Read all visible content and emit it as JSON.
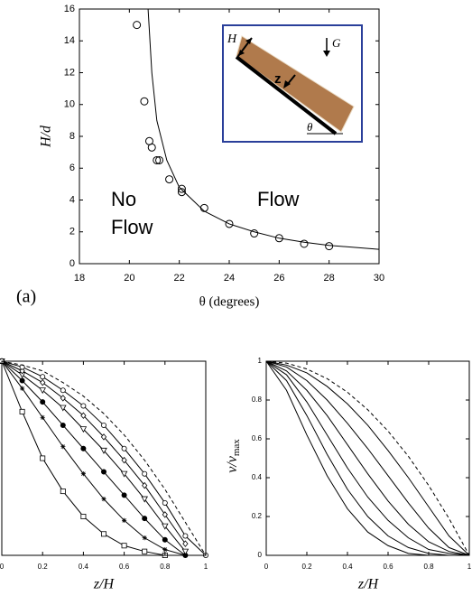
{
  "chart_data": [
    {
      "type": "scatter",
      "annotations": {
        "panel": "(a)",
        "no_flow_1": "No",
        "no_flow_2": "Flow",
        "flow": "Flow"
      },
      "inset_labels": {
        "H": "H",
        "G": "G",
        "z": "z",
        "theta": "θ"
      },
      "xlabel": "θ (degrees)",
      "ylabel": "H/d",
      "xlim": [
        18,
        30
      ],
      "xticks": [
        18,
        20,
        22,
        24,
        26,
        28,
        30
      ],
      "ylim": [
        0,
        16
      ],
      "yticks": [
        0,
        2,
        4,
        6,
        8,
        10,
        12,
        14,
        16
      ],
      "x": [
        20.3,
        20.6,
        20.8,
        20.9,
        21.1,
        21.2,
        21.6,
        22.1,
        22.1,
        23,
        24,
        25,
        26,
        27,
        28
      ],
      "y": [
        15,
        10.2,
        7.7,
        7.3,
        6.5,
        6.5,
        5.3,
        4.7,
        4.5,
        3.5,
        2.5,
        1.9,
        1.6,
        1.25,
        1.1
      ],
      "color": "#000000",
      "fit": {
        "x": [
          20.75,
          20.9,
          21.1,
          21.5,
          22,
          23,
          24,
          25,
          26,
          27,
          28,
          30
        ],
        "y": [
          16,
          12,
          9,
          6.5,
          4.8,
          3.3,
          2.5,
          2,
          1.6,
          1.35,
          1.15,
          0.9
        ]
      }
    },
    {
      "type": "line",
      "xlabel": "z/H",
      "xlim": [
        0,
        1
      ],
      "xticks": [
        0,
        0.2,
        0.4,
        0.6,
        0.8,
        1
      ],
      "ylim": [
        0,
        1
      ],
      "x": [
        0,
        0.1,
        0.2,
        0.3,
        0.4,
        0.5,
        0.6,
        0.7,
        0.8,
        0.9,
        1
      ],
      "series": [
        {
          "color": "#000000",
          "marker": "square",
          "values": [
            1,
            0.74,
            0.5,
            0.33,
            0.2,
            0.11,
            0.05,
            0.02,
            0,
            null,
            null
          ]
        },
        {
          "color": "#000000",
          "marker": "star",
          "values": [
            1,
            0.86,
            0.71,
            0.56,
            0.42,
            0.29,
            0.18,
            0.09,
            0.03,
            0,
            null
          ]
        },
        {
          "color": "#000000",
          "marker": "dot",
          "values": [
            1,
            0.9,
            0.79,
            0.67,
            0.55,
            0.43,
            0.31,
            0.19,
            0.08,
            0,
            null
          ]
        },
        {
          "color": "#000000",
          "marker": "triangle",
          "values": [
            1,
            0.93,
            0.85,
            0.76,
            0.65,
            0.54,
            0.42,
            0.29,
            0.15,
            0.02,
            null
          ]
        },
        {
          "color": "#000000",
          "marker": "diamond",
          "values": [
            1,
            0.95,
            0.89,
            0.81,
            0.72,
            0.61,
            0.49,
            0.36,
            0.21,
            0.06,
            null
          ]
        },
        {
          "color": "#000000",
          "marker": "circle",
          "values": [
            1,
            0.97,
            0.92,
            0.85,
            0.77,
            0.67,
            0.55,
            0.42,
            0.27,
            0.1,
            0
          ]
        },
        {
          "color": "#000000",
          "dash": true,
          "values": [
            1,
            0.98,
            0.95,
            0.89,
            0.82,
            0.73,
            0.62,
            0.49,
            0.34,
            0.17,
            0
          ]
        }
      ]
    },
    {
      "type": "line",
      "xlabel": "z/H",
      "ylabel": {
        "main": "v/v",
        "sub": "max"
      },
      "xlim": [
        0,
        1
      ],
      "xticks": [
        0,
        0.2,
        0.4,
        0.6,
        0.8,
        1
      ],
      "ylim": [
        0,
        1
      ],
      "yticks": [
        0,
        0.2,
        0.4,
        0.6,
        0.8,
        1
      ],
      "x": [
        0,
        0.1,
        0.2,
        0.3,
        0.4,
        0.5,
        0.6,
        0.7,
        0.8,
        0.9,
        1
      ],
      "series": [
        {
          "color": "#000000",
          "dash": true,
          "values": [
            1,
            0.99,
            0.96,
            0.91,
            0.84,
            0.75,
            0.64,
            0.51,
            0.36,
            0.19,
            0
          ]
        },
        {
          "color": "#000000",
          "values": [
            1,
            0.98,
            0.94,
            0.87,
            0.78,
            0.67,
            0.54,
            0.4,
            0.25,
            0.1,
            0
          ]
        },
        {
          "color": "#000000",
          "values": [
            1,
            0.97,
            0.9,
            0.8,
            0.68,
            0.55,
            0.41,
            0.27,
            0.14,
            0.04,
            0
          ]
        },
        {
          "color": "#000000",
          "values": [
            1,
            0.95,
            0.85,
            0.72,
            0.57,
            0.42,
            0.28,
            0.16,
            0.07,
            0.02,
            0
          ]
        },
        {
          "color": "#000000",
          "values": [
            1,
            0.93,
            0.79,
            0.62,
            0.45,
            0.3,
            0.18,
            0.09,
            0.03,
            0.01,
            0
          ]
        },
        {
          "color": "#000000",
          "values": [
            1,
            0.9,
            0.72,
            0.52,
            0.34,
            0.2,
            0.1,
            0.04,
            0.01,
            0,
            0
          ]
        },
        {
          "color": "#000000",
          "values": [
            1,
            0.85,
            0.62,
            0.41,
            0.24,
            0.12,
            0.05,
            0.01,
            0,
            0,
            0
          ]
        }
      ]
    }
  ]
}
